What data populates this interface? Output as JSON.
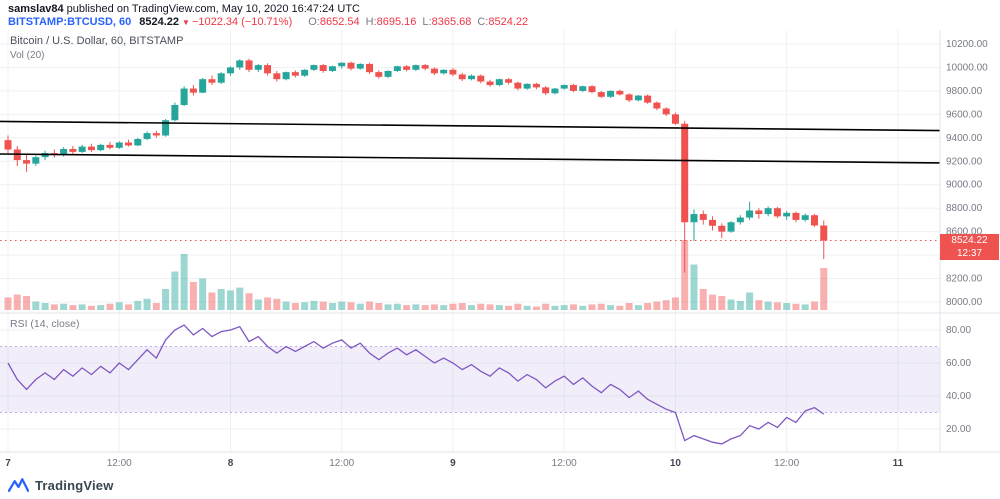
{
  "publish_bar": {
    "username": "samslav84",
    "suffix": "published on TradingView.com, May 10, 2020 16:47:24 UTC"
  },
  "symbol_bar": {
    "symbol": "BITSTAMP:BTCUSD, 60",
    "last_price": "8524.22",
    "direction_glyph": "▼",
    "change": "−1022.34 (−10.71%)",
    "ohlc": [
      {
        "label": "O:",
        "value": "8652.54"
      },
      {
        "label": "H:",
        "value": "8695.16"
      },
      {
        "label": "L:",
        "value": "8365.68"
      },
      {
        "label": "C:",
        "value": "8524.22"
      }
    ]
  },
  "price_pane": {
    "legend_main": "Bitcoin / U.S. Dollar, 60, BITSTAMP",
    "legend_volume": "Vol (20)",
    "price_label": "8524.22",
    "countdown_label": "12:37"
  },
  "rsi_pane": {
    "legend": "RSI (14, close)"
  },
  "footer": {
    "brand": "TradingView"
  },
  "colors": {
    "up": "#26a69a",
    "down": "#ef5350",
    "volume_up": "rgba(38,166,154,0.45)",
    "volume_down": "rgba(239,83,80,0.45)",
    "rsi_line": "#7e57c2",
    "rsi_band": "rgba(126,87,194,0.10)",
    "rsi_band_edge": "rgba(126,87,194,0.45)",
    "trendline": "#000000",
    "last_price": "#ef5350",
    "grid": "#eef1f4",
    "separator": "#e0e3eb",
    "axis_text": "#787b86",
    "axis_text_major": "#424855"
  },
  "chart_data": [
    {
      "type": "candlestick",
      "title": "Bitcoin / U.S. Dollar, 60, BITSTAMP",
      "exchange": "BITSTAMP",
      "interval": "60",
      "x_start": "2020-05-07 00:00 UTC",
      "ylim": [
        7980,
        10320
      ],
      "y_ticks": [
        8000,
        8200,
        8400,
        8600,
        8800,
        9000,
        9200,
        9400,
        9600,
        9800,
        10000,
        10200
      ],
      "time_ticks": [
        {
          "i": 0,
          "label": "7",
          "major": true
        },
        {
          "i": 12,
          "label": "12:00",
          "major": false
        },
        {
          "i": 24,
          "label": "8",
          "major": true
        },
        {
          "i": 36,
          "label": "12:00",
          "major": false
        },
        {
          "i": 48,
          "label": "9",
          "major": true
        },
        {
          "i": 60,
          "label": "12:00",
          "major": false
        },
        {
          "i": 72,
          "label": "10",
          "major": true
        },
        {
          "i": 84,
          "label": "12:00",
          "major": false
        },
        {
          "i": 96,
          "label": "11",
          "major": true
        }
      ],
      "last_price": 8524.22,
      "trendlines": [
        {
          "price_left": 9540,
          "price_right": 9462
        },
        {
          "price_left": 9262,
          "price_right": 9186
        }
      ],
      "candles_note": "[open, high, low, close, volume(0-100 relative)] hourly",
      "candles": [
        [
          9380,
          9420,
          9270,
          9300,
          18
        ],
        [
          9300,
          9330,
          9160,
          9210,
          22
        ],
        [
          9210,
          9260,
          9110,
          9180,
          20
        ],
        [
          9180,
          9250,
          9160,
          9235,
          12
        ],
        [
          9235,
          9290,
          9210,
          9270,
          10
        ],
        [
          9270,
          9300,
          9230,
          9255,
          8
        ],
        [
          9255,
          9320,
          9240,
          9305,
          9
        ],
        [
          9305,
          9330,
          9260,
          9280,
          7
        ],
        [
          9280,
          9340,
          9270,
          9325,
          8
        ],
        [
          9325,
          9350,
          9280,
          9295,
          6
        ],
        [
          9295,
          9350,
          9285,
          9340,
          7
        ],
        [
          9340,
          9365,
          9300,
          9315,
          9
        ],
        [
          9315,
          9370,
          9305,
          9360,
          11
        ],
        [
          9360,
          9385,
          9325,
          9335,
          8
        ],
        [
          9335,
          9400,
          9330,
          9390,
          13
        ],
        [
          9390,
          9455,
          9380,
          9440,
          16
        ],
        [
          9440,
          9460,
          9400,
          9420,
          10
        ],
        [
          9420,
          9560,
          9410,
          9550,
          30
        ],
        [
          9550,
          9700,
          9540,
          9680,
          55
        ],
        [
          9680,
          9840,
          9670,
          9820,
          80
        ],
        [
          9820,
          9850,
          9760,
          9785,
          40
        ],
        [
          9785,
          9910,
          9780,
          9900,
          45
        ],
        [
          9900,
          9930,
          9850,
          9870,
          25
        ],
        [
          9870,
          9960,
          9860,
          9950,
          30
        ],
        [
          9950,
          10010,
          9930,
          10000,
          28
        ],
        [
          10000,
          10070,
          9980,
          10060,
          32
        ],
        [
          10060,
          10075,
          9960,
          9980,
          24
        ],
        [
          9980,
          10030,
          9960,
          10020,
          15
        ],
        [
          10020,
          10035,
          9930,
          9950,
          18
        ],
        [
          9950,
          9970,
          9880,
          9900,
          16
        ],
        [
          9900,
          9965,
          9890,
          9960,
          12
        ],
        [
          9960,
          9975,
          9915,
          9930,
          10
        ],
        [
          9930,
          9985,
          9920,
          9980,
          11
        ],
        [
          9980,
          10025,
          9970,
          10020,
          13
        ],
        [
          10020,
          10030,
          9955,
          9970,
          12
        ],
        [
          9970,
          10015,
          9960,
          10010,
          10
        ],
        [
          10010,
          10045,
          9990,
          10040,
          12
        ],
        [
          10040,
          10050,
          9975,
          9990,
          11
        ],
        [
          9990,
          10035,
          9980,
          10030,
          9
        ],
        [
          10030,
          10040,
          9945,
          9960,
          12
        ],
        [
          9960,
          9975,
          9905,
          9920,
          10
        ],
        [
          9920,
          9975,
          9910,
          9970,
          8
        ],
        [
          9970,
          10015,
          9960,
          10010,
          9
        ],
        [
          10010,
          10020,
          9965,
          9980,
          7
        ],
        [
          9980,
          10025,
          9970,
          10020,
          8
        ],
        [
          10020,
          10030,
          9975,
          9990,
          7
        ],
        [
          9990,
          10000,
          9935,
          9950,
          8
        ],
        [
          9950,
          9985,
          9940,
          9980,
          7
        ],
        [
          9980,
          9995,
          9925,
          9940,
          9
        ],
        [
          9940,
          9955,
          9885,
          9900,
          10
        ],
        [
          9900,
          9940,
          9890,
          9930,
          7
        ],
        [
          9930,
          9940,
          9865,
          9880,
          9
        ],
        [
          9880,
          9895,
          9835,
          9850,
          8
        ],
        [
          9850,
          9905,
          9840,
          9900,
          7
        ],
        [
          9900,
          9910,
          9855,
          9870,
          6
        ],
        [
          9870,
          9880,
          9805,
          9820,
          9
        ],
        [
          9820,
          9865,
          9810,
          9860,
          6
        ],
        [
          9860,
          9870,
          9815,
          9830,
          5
        ],
        [
          9830,
          9840,
          9765,
          9780,
          9
        ],
        [
          9780,
          9825,
          9770,
          9820,
          6
        ],
        [
          9820,
          9855,
          9810,
          9850,
          7
        ],
        [
          9850,
          9860,
          9790,
          9800,
          8
        ],
        [
          9800,
          9845,
          9790,
          9840,
          6
        ],
        [
          9840,
          9850,
          9780,
          9790,
          8
        ],
        [
          9790,
          9800,
          9740,
          9750,
          9
        ],
        [
          9750,
          9805,
          9740,
          9800,
          7
        ],
        [
          9800,
          9810,
          9760,
          9770,
          6
        ],
        [
          9770,
          9780,
          9705,
          9720,
          10
        ],
        [
          9720,
          9765,
          9710,
          9760,
          7
        ],
        [
          9760,
          9770,
          9690,
          9700,
          10
        ],
        [
          9700,
          9710,
          9635,
          9650,
          12
        ],
        [
          9650,
          9660,
          9585,
          9600,
          14
        ],
        [
          9600,
          9615,
          9510,
          9520,
          18
        ],
        [
          9520,
          9545,
          8250,
          8680,
          100
        ],
        [
          8680,
          8790,
          8520,
          8750,
          65
        ],
        [
          8750,
          8780,
          8660,
          8700,
          30
        ],
        [
          8700,
          8730,
          8610,
          8650,
          22
        ],
        [
          8650,
          8670,
          8545,
          8600,
          20
        ],
        [
          8600,
          8690,
          8590,
          8680,
          15
        ],
        [
          8680,
          8740,
          8660,
          8720,
          13
        ],
        [
          8720,
          8855,
          8700,
          8780,
          25
        ],
        [
          8780,
          8800,
          8710,
          8750,
          14
        ],
        [
          8750,
          8815,
          8730,
          8800,
          12
        ],
        [
          8800,
          8810,
          8715,
          8730,
          11
        ],
        [
          8730,
          8775,
          8700,
          8760,
          10
        ],
        [
          8760,
          8770,
          8680,
          8700,
          9
        ],
        [
          8700,
          8755,
          8685,
          8740,
          8
        ],
        [
          8740,
          8750,
          8640,
          8652.54,
          12
        ],
        [
          8652.54,
          8695.16,
          8365.68,
          8524.22,
          60
        ]
      ]
    },
    {
      "type": "line",
      "title": "RSI (14, close)",
      "ylim": [
        5,
        92
      ],
      "y_ticks": [
        20,
        40,
        60,
        80
      ],
      "band": [
        30,
        70
      ],
      "values": [
        60,
        50,
        44,
        50,
        54,
        50,
        56,
        52,
        57,
        53,
        58,
        54,
        60,
        56,
        62,
        68,
        63,
        74,
        80,
        83,
        77,
        81,
        76,
        79,
        80,
        82,
        73,
        76,
        70,
        66,
        70,
        67,
        70,
        73,
        69,
        72,
        74,
        69,
        72,
        66,
        62,
        66,
        69,
        65,
        68,
        64,
        60,
        63,
        60,
        56,
        59,
        55,
        52,
        57,
        54,
        49,
        53,
        50,
        45,
        49,
        52,
        47,
        51,
        46,
        42,
        47,
        44,
        39,
        43,
        38,
        35,
        32,
        30,
        13,
        16,
        14,
        12,
        11,
        14,
        16,
        22,
        20,
        24,
        21,
        27,
        24,
        31,
        33,
        29
      ]
    }
  ]
}
